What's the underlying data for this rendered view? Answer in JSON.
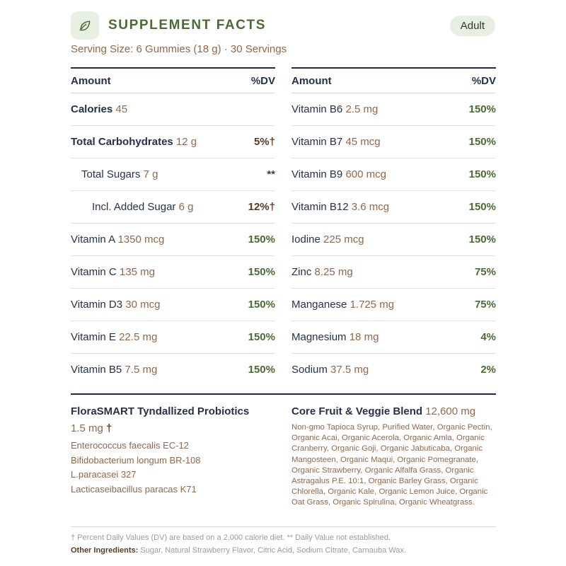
{
  "header": {
    "title": "SUPPLEMENT FACTS",
    "badge": "Adult",
    "icon": "leaf-icon",
    "accent_color": "#4b6b34"
  },
  "serving": "Serving Size: 6 Gummies (18 g) · 30 Servings",
  "columns": {
    "amount_label": "Amount",
    "dv_label": "%DV"
  },
  "left_rows": [
    {
      "name": "Calories",
      "qty": "45",
      "dv": ""
    },
    {
      "name": "Total Carbohydrates",
      "qty": "12 g",
      "dv": "5%†"
    },
    {
      "name": "Total Sugars",
      "qty": "7 g",
      "dv": "**"
    },
    {
      "name": "Incl. Added Sugar",
      "qty": "6 g",
      "dv": "12%†"
    },
    {
      "name": "Vitamin A",
      "qty": "1350 mcg",
      "dv": "150%"
    },
    {
      "name": "Vitamin C",
      "qty": "135 mg",
      "dv": "150%"
    },
    {
      "name": "Vitamin D3",
      "qty": "30 mcg",
      "dv": "150%"
    },
    {
      "name": "Vitamin E",
      "qty": "22.5 mg",
      "dv": "150%"
    },
    {
      "name": "Vitamin B5",
      "qty": "7.5 mg",
      "dv": "150%"
    }
  ],
  "right_rows": [
    {
      "name": "Vitamin B6",
      "qty": "2.5 mg",
      "dv": "150%"
    },
    {
      "name": "Vitamin B7",
      "qty": "45 mcg",
      "dv": "150%"
    },
    {
      "name": "Vitamin B9",
      "qty": "600 mcg",
      "dv": "150%"
    },
    {
      "name": "Vitamin B12",
      "qty": "3.6 mcg",
      "dv": "150%"
    },
    {
      "name": "Iodine",
      "qty": "225 mcg",
      "dv": "150%"
    },
    {
      "name": "Zinc",
      "qty": "8.25 mg",
      "dv": "75%"
    },
    {
      "name": "Manganese",
      "qty": "1.725 mg",
      "dv": "75%"
    },
    {
      "name": "Magnesium",
      "qty": "18 mg",
      "dv": "4%"
    },
    {
      "name": "Sodium",
      "qty": "37.5 mg",
      "dv": "2%"
    }
  ],
  "probiotics": {
    "title": "FloraSMART Tyndallized Probiotics",
    "amount": "1.5 mg",
    "dagger": "†",
    "strains": [
      "Enterococcus faecalis EC-12",
      "Bifidobacterium longum BR-108",
      "L.paracasei 327",
      "Lacticaseibacillus paracas K71"
    ]
  },
  "blend": {
    "title": "Core Fruit & Veggie Blend",
    "amount": "12,600 mg",
    "ingredients": "Non-gmo Tapioca Syrup, Purified Water, Organic Pectin, Organic Acai, Organic Acerola, Organic Amla, Organic Cranberry, Organic Goji, Organic Jabuticaba, Organic Mangosteen, Organic Maqui, Organic Pomegranate, Organic Strawberry, Organic Alfalfa Grass, Organic Astragalus P.E. 10:1, Organic Barley Grass, Organic Chlorella, Organic Kale, Organic Lemon Juice, Organic Oat Grass, Organic Spirulina, Organic Wheatgrass."
  },
  "footer": {
    "footnote": "† Percent Daily Values (DV) are based on a 2,000 calorie diet. ** Daily Value not established.",
    "other_label": "Other Ingredients:",
    "other_text": " Sugar, Natural Strawberry Flavor, Citric Acid, Sodium Citrate, Carnauba Wax."
  }
}
